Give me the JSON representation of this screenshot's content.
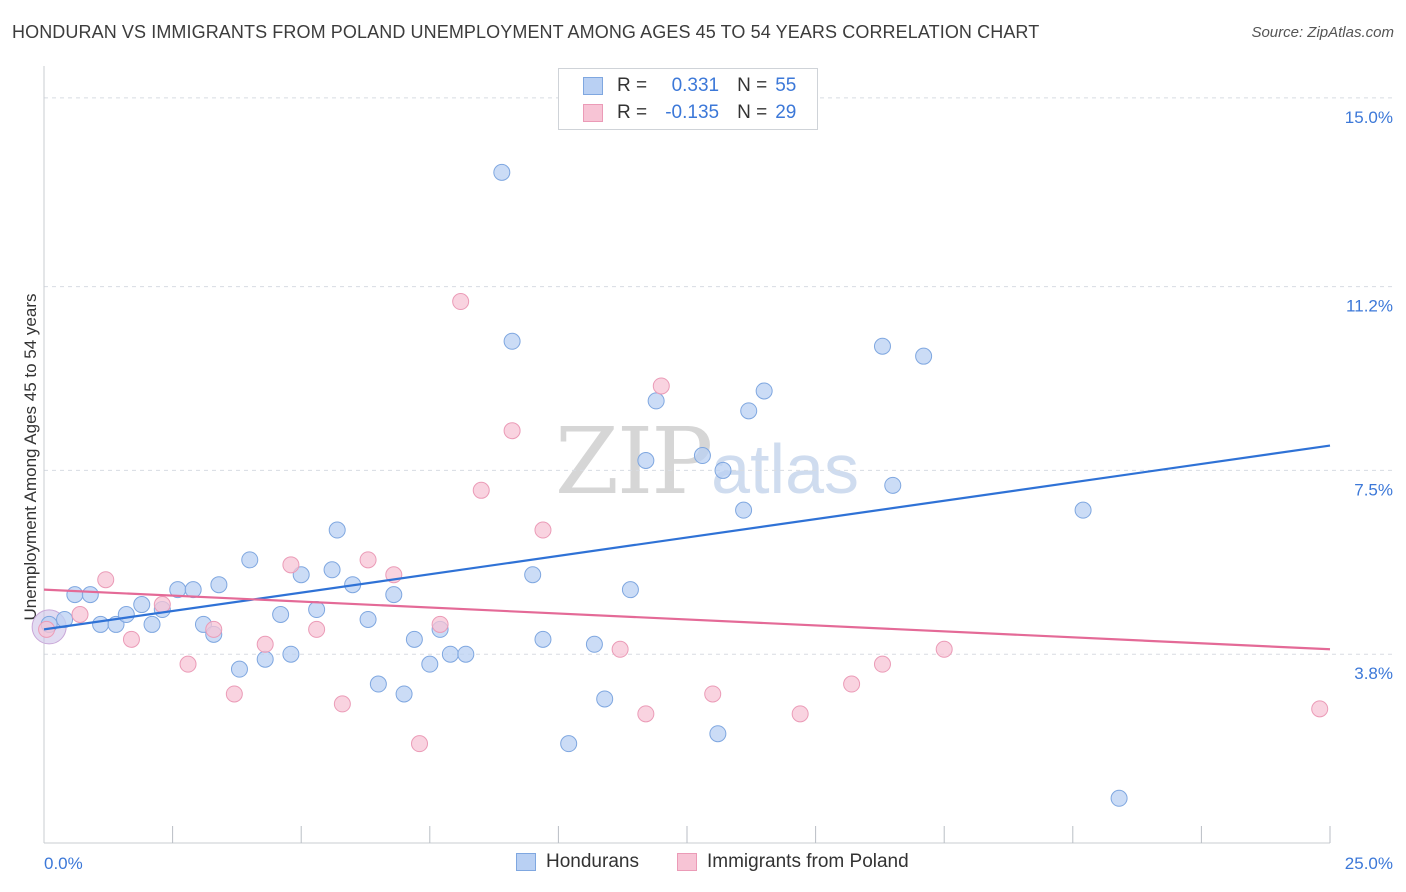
{
  "title": "HONDURAN VS IMMIGRANTS FROM POLAND UNEMPLOYMENT AMONG AGES 45 TO 54 YEARS CORRELATION CHART",
  "source": "Source: ZipAtlas.com",
  "watermark": {
    "zip": "ZIP",
    "atlas": "atlas"
  },
  "legend": {
    "rows": [
      {
        "r_label": "R =",
        "r_value": "0.331",
        "n_label": "N =",
        "n_value": "55"
      },
      {
        "r_label": "R =",
        "r_value": "-0.135",
        "n_label": "N =",
        "n_value": "29"
      }
    ]
  },
  "bottom_legend": [
    "Hondurans",
    "Immigrants from Poland"
  ],
  "colors": {
    "blue_fill": "#b9d0f3",
    "blue_stroke": "#7fa7e0",
    "blue_line": "#2f72d6",
    "pink_fill": "#f7c4d5",
    "pink_stroke": "#eb9bb7",
    "pink_line": "#e46a97",
    "tick_label": "#3c78d8",
    "grid": "#d8dce2"
  },
  "chart_data": {
    "type": "scatter",
    "title": "HONDURAN VS IMMIGRANTS FROM POLAND UNEMPLOYMENT AMONG AGES 45 TO 54 YEARS CORRELATION CHART",
    "xlabel": "",
    "ylabel": "Unemployment Among Ages 45 to 54 years",
    "xlim": [
      0,
      25
    ],
    "ylim": [
      0,
      15.4
    ],
    "y_ticks": [
      3.8,
      7.5,
      11.2,
      15.0
    ],
    "y_tick_labels": [
      "3.8%",
      "7.5%",
      "11.2%",
      "15.0%"
    ],
    "x_tick_labels": [
      "0.0%",
      "25.0%"
    ],
    "grid": true,
    "legend_position": "top-center",
    "series": [
      {
        "name": "Hondurans",
        "r": 0.331,
        "n": 55,
        "trend": [
          [
            0,
            4.3
          ],
          [
            25,
            8.0
          ]
        ],
        "points": [
          [
            0.1,
            4.4
          ],
          [
            0.4,
            4.5
          ],
          [
            0.6,
            5.0
          ],
          [
            0.9,
            5.0
          ],
          [
            1.1,
            4.4
          ],
          [
            1.4,
            4.4
          ],
          [
            1.6,
            4.6
          ],
          [
            1.9,
            4.8
          ],
          [
            2.1,
            4.4
          ],
          [
            2.3,
            4.7
          ],
          [
            2.6,
            5.1
          ],
          [
            2.9,
            5.1
          ],
          [
            3.1,
            4.4
          ],
          [
            3.3,
            4.2
          ],
          [
            3.4,
            5.2
          ],
          [
            3.8,
            3.5
          ],
          [
            4.0,
            5.7
          ],
          [
            4.3,
            3.7
          ],
          [
            4.6,
            4.6
          ],
          [
            4.8,
            3.8
          ],
          [
            5.0,
            5.4
          ],
          [
            5.3,
            4.7
          ],
          [
            5.6,
            5.5
          ],
          [
            5.7,
            6.3
          ],
          [
            6.0,
            5.2
          ],
          [
            6.3,
            4.5
          ],
          [
            6.5,
            3.2
          ],
          [
            6.8,
            5.0
          ],
          [
            7.0,
            3.0
          ],
          [
            7.2,
            4.1
          ],
          [
            7.5,
            3.6
          ],
          [
            7.7,
            4.3
          ],
          [
            7.9,
            3.8
          ],
          [
            8.2,
            3.8
          ],
          [
            8.9,
            13.5
          ],
          [
            9.1,
            10.1
          ],
          [
            9.5,
            5.4
          ],
          [
            9.7,
            4.1
          ],
          [
            10.2,
            2.0
          ],
          [
            10.7,
            4.0
          ],
          [
            10.9,
            2.9
          ],
          [
            11.4,
            5.1
          ],
          [
            11.7,
            7.7
          ],
          [
            11.9,
            8.9
          ],
          [
            12.8,
            7.8
          ],
          [
            13.1,
            2.2
          ],
          [
            13.2,
            7.5
          ],
          [
            13.6,
            6.7
          ],
          [
            13.7,
            8.7
          ],
          [
            14.0,
            9.1
          ],
          [
            16.3,
            10.0
          ],
          [
            16.5,
            7.2
          ],
          [
            17.1,
            9.8
          ],
          [
            20.2,
            6.7
          ],
          [
            20.9,
            0.9
          ]
        ]
      },
      {
        "name": "Immigrants from Poland",
        "r": -0.135,
        "n": 29,
        "trend": [
          [
            0,
            5.1
          ],
          [
            25,
            3.9
          ]
        ],
        "points": [
          [
            0.05,
            4.3
          ],
          [
            0.7,
            4.6
          ],
          [
            1.2,
            5.3
          ],
          [
            1.7,
            4.1
          ],
          [
            2.3,
            4.8
          ],
          [
            2.8,
            3.6
          ],
          [
            3.3,
            4.3
          ],
          [
            3.7,
            3.0
          ],
          [
            4.3,
            4.0
          ],
          [
            4.8,
            5.6
          ],
          [
            5.3,
            4.3
          ],
          [
            5.8,
            2.8
          ],
          [
            6.3,
            5.7
          ],
          [
            6.8,
            5.4
          ],
          [
            7.3,
            2.0
          ],
          [
            7.7,
            4.4
          ],
          [
            8.1,
            10.9
          ],
          [
            8.5,
            7.1
          ],
          [
            9.1,
            8.3
          ],
          [
            9.7,
            6.3
          ],
          [
            11.2,
            3.9
          ],
          [
            11.7,
            2.6
          ],
          [
            12.0,
            9.2
          ],
          [
            13.0,
            3.0
          ],
          [
            14.7,
            2.6
          ],
          [
            15.7,
            3.2
          ],
          [
            16.3,
            3.6
          ],
          [
            17.5,
            3.9
          ],
          [
            24.8,
            2.7
          ]
        ]
      }
    ]
  }
}
